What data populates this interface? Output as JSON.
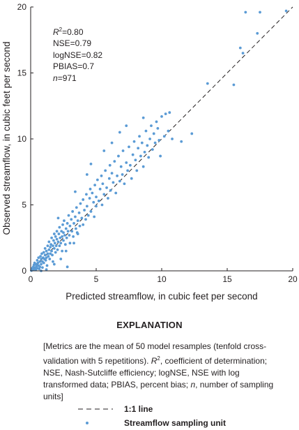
{
  "metrics": {
    "r2_symbol": "R",
    "r2_sup": "2",
    "r2_value": "=0.80",
    "nse": "NSE=0.79",
    "lognse": "logNSE=0.82",
    "pbias": "PBIAS=0.7",
    "n_symbol": "n",
    "n_value": "=971"
  },
  "explanation": {
    "title": "EXPLANATION",
    "note_p1": "[Metrics are the mean of 50 model resamples (tenfold cross-validation with 5 repetitions). ",
    "note_r": "R",
    "note_sup": "2",
    "note_p2": ", coefficient of determination; NSE, Nash-Sutcliffe efficiency; logNSE, NSE with log transformed data; PBIAS, percent bias; ",
    "note_n": "n",
    "note_p3": ", number of sampling units]",
    "legend_line": "1:1 line",
    "legend_point": "Streamflow sampling unit"
  },
  "colors": {
    "point": "#5b9bd5",
    "axis": "#231f20",
    "reference_line": "#231f20"
  },
  "chart_data": {
    "type": "scatter",
    "xlabel": "Predicted streamflow, in cubic feet per second",
    "ylabel": "Observed streamflow, in cubic feet per second",
    "xlim": [
      0,
      20
    ],
    "ylim": [
      0,
      20
    ],
    "xticks": [
      0,
      5,
      10,
      15,
      20
    ],
    "yticks": [
      0,
      5,
      10,
      15,
      20
    ],
    "grid": false,
    "reference_line": {
      "name": "1:1 line",
      "from": [
        0,
        0
      ],
      "to": [
        20,
        20
      ],
      "style": "dashed"
    },
    "series": [
      {
        "name": "Streamflow sampling unit",
        "points": [
          [
            0.05,
            0.02
          ],
          [
            0.1,
            0.05
          ],
          [
            0.12,
            0.2
          ],
          [
            0.15,
            0.08
          ],
          [
            0.2,
            0.3
          ],
          [
            0.22,
            0.1
          ],
          [
            0.25,
            0.45
          ],
          [
            0.3,
            0.15
          ],
          [
            0.3,
            0.6
          ],
          [
            0.35,
            0.25
          ],
          [
            0.4,
            0.1
          ],
          [
            0.4,
            0.5
          ],
          [
            0.45,
            0.35
          ],
          [
            0.5,
            0.8
          ],
          [
            0.5,
            0.2
          ],
          [
            0.55,
            0.6
          ],
          [
            0.6,
            0.4
          ],
          [
            0.6,
            1.0
          ],
          [
            0.65,
            0.15
          ],
          [
            0.7,
            0.7
          ],
          [
            0.7,
            0.3
          ],
          [
            0.75,
            1.1
          ],
          [
            0.8,
            0.5
          ],
          [
            0.8,
            0.9
          ],
          [
            0.85,
            1.3
          ],
          [
            0.9,
            0.7
          ],
          [
            0.9,
            0.25
          ],
          [
            0.95,
            1.0
          ],
          [
            1.0,
            1.4
          ],
          [
            1.0,
            0.6
          ],
          [
            1.05,
            0.9
          ],
          [
            1.1,
            1.2
          ],
          [
            1.1,
            1.7
          ],
          [
            1.15,
            0.8
          ],
          [
            1.2,
            1.5
          ],
          [
            1.2,
            1.0
          ],
          [
            1.25,
            0.4
          ],
          [
            1.3,
            1.9
          ],
          [
            1.3,
            1.3
          ],
          [
            1.35,
            1.1
          ],
          [
            1.4,
            1.6
          ],
          [
            1.4,
            2.2
          ],
          [
            1.45,
            0.9
          ],
          [
            1.5,
            1.8
          ],
          [
            1.5,
            1.3
          ],
          [
            1.55,
            2.0
          ],
          [
            1.6,
            1.5
          ],
          [
            1.6,
            2.5
          ],
          [
            1.65,
            1.2
          ],
          [
            1.7,
            1.9
          ],
          [
            1.7,
            0.7
          ],
          [
            1.75,
            2.3
          ],
          [
            1.8,
            1.7
          ],
          [
            1.8,
            2.8
          ],
          [
            1.85,
            2.1
          ],
          [
            1.9,
            1.4
          ],
          [
            1.9,
            2.6
          ],
          [
            1.95,
            1.9
          ],
          [
            2.0,
            2.4
          ],
          [
            2.0,
            3.0
          ],
          [
            2.05,
            1.6
          ],
          [
            2.1,
            2.2
          ],
          [
            2.15,
            2.8
          ],
          [
            2.2,
            1.9
          ],
          [
            2.2,
            3.3
          ],
          [
            2.25,
            2.5
          ],
          [
            2.3,
            2.1
          ],
          [
            2.35,
            3.0
          ],
          [
            2.4,
            2.6
          ],
          [
            2.4,
            1.5
          ],
          [
            2.45,
            3.5
          ],
          [
            2.5,
            2.3
          ],
          [
            2.5,
            2.9
          ],
          [
            2.55,
            3.8
          ],
          [
            2.6,
            2.7
          ],
          [
            2.65,
            2.0
          ],
          [
            2.7,
            3.2
          ],
          [
            2.75,
            2.5
          ],
          [
            2.8,
            3.6
          ],
          [
            2.8,
            0.3
          ],
          [
            2.85,
            3.0
          ],
          [
            2.9,
            4.2
          ],
          [
            2.95,
            2.7
          ],
          [
            3.0,
            3.4
          ],
          [
            3.0,
            2.1
          ],
          [
            3.1,
            3.9
          ],
          [
            3.15,
            3.0
          ],
          [
            3.2,
            4.5
          ],
          [
            3.25,
            2.6
          ],
          [
            3.3,
            3.6
          ],
          [
            3.4,
            4.1
          ],
          [
            3.45,
            3.2
          ],
          [
            3.5,
            4.8
          ],
          [
            3.55,
            2.9
          ],
          [
            3.6,
            3.8
          ],
          [
            3.7,
            4.4
          ],
          [
            3.75,
            3.4
          ],
          [
            3.8,
            5.1
          ],
          [
            3.9,
            4.0
          ],
          [
            4.0,
            3.5
          ],
          [
            4.0,
            5.4
          ],
          [
            4.1,
            4.6
          ],
          [
            4.2,
            3.9
          ],
          [
            4.25,
            5.8
          ],
          [
            4.3,
            4.9
          ],
          [
            4.4,
            4.2
          ],
          [
            4.5,
            5.5
          ],
          [
            4.55,
            6.2
          ],
          [
            4.6,
            4.5
          ],
          [
            4.7,
            5.9
          ],
          [
            4.8,
            5.2
          ],
          [
            4.85,
            4.1
          ],
          [
            4.9,
            6.5
          ],
          [
            5.0,
            5.6
          ],
          [
            5.0,
            4.9
          ],
          [
            5.1,
            6.9
          ],
          [
            5.2,
            5.3
          ],
          [
            5.3,
            6.2
          ],
          [
            5.4,
            7.2
          ],
          [
            5.45,
            5.0
          ],
          [
            5.5,
            6.6
          ],
          [
            5.6,
            5.8
          ],
          [
            5.7,
            7.6
          ],
          [
            5.8,
            6.3
          ],
          [
            5.9,
            5.5
          ],
          [
            6.0,
            7.0
          ],
          [
            6.05,
            8.0
          ],
          [
            6.1,
            6.1
          ],
          [
            6.2,
            7.4
          ],
          [
            6.3,
            6.7
          ],
          [
            6.4,
            8.3
          ],
          [
            6.5,
            5.9
          ],
          [
            6.6,
            7.2
          ],
          [
            6.7,
            8.7
          ],
          [
            6.8,
            6.8
          ],
          [
            6.9,
            7.9
          ],
          [
            7.0,
            7.3
          ],
          [
            7.05,
            9.1
          ],
          [
            7.15,
            6.6
          ],
          [
            7.3,
            8.2
          ],
          [
            7.4,
            7.6
          ],
          [
            7.5,
            9.4
          ],
          [
            7.6,
            8.0
          ],
          [
            7.7,
            7.0
          ],
          [
            7.8,
            8.8
          ],
          [
            7.9,
            9.8
          ],
          [
            8.0,
            8.4
          ],
          [
            8.1,
            7.6
          ],
          [
            8.2,
            9.3
          ],
          [
            8.3,
            10.2
          ],
          [
            8.4,
            8.7
          ],
          [
            8.5,
            9.7
          ],
          [
            8.6,
            7.9
          ],
          [
            8.7,
            9.0
          ],
          [
            8.8,
            10.6
          ],
          [
            8.9,
            9.5
          ],
          [
            9.0,
            8.6
          ],
          [
            9.1,
            10.0
          ],
          [
            9.2,
            11.0
          ],
          [
            9.3,
            9.2
          ],
          [
            9.4,
            10.4
          ],
          [
            9.5,
            9.7
          ],
          [
            9.6,
            11.3
          ],
          [
            9.7,
            10.8
          ],
          [
            9.8,
            9.9
          ],
          [
            10.0,
            11.7
          ],
          [
            10.2,
            10.2
          ],
          [
            10.3,
            11.9
          ],
          [
            10.5,
            10.6
          ],
          [
            6.8,
            10.5
          ],
          [
            7.3,
            11.0
          ],
          [
            6.2,
            9.7
          ],
          [
            5.6,
            9.1
          ],
          [
            4.6,
            8.1
          ],
          [
            8.6,
            11.6
          ],
          [
            12.3,
            10.4
          ],
          [
            10.6,
            12.0
          ],
          [
            11.5,
            9.8
          ],
          [
            2.3,
            0.9
          ],
          [
            2.7,
            1.5
          ],
          [
            3.3,
            2.1
          ],
          [
            3.6,
            2.8
          ],
          [
            1.8,
            0.5
          ],
          [
            1.2,
            0.1
          ],
          [
            0.8,
            0.0
          ],
          [
            2.1,
            4.0
          ],
          [
            3.4,
            6.0
          ],
          [
            4.3,
            7.3
          ],
          [
            13.5,
            14.2
          ],
          [
            15.5,
            14.1
          ],
          [
            16.2,
            16.5
          ],
          [
            16.0,
            16.9
          ],
          [
            17.3,
            18.0
          ],
          [
            16.4,
            19.6
          ],
          [
            17.5,
            19.6
          ],
          [
            19.5,
            19.7
          ],
          [
            10.8,
            10.0
          ],
          [
            9.9,
            8.7
          ]
        ]
      }
    ]
  }
}
